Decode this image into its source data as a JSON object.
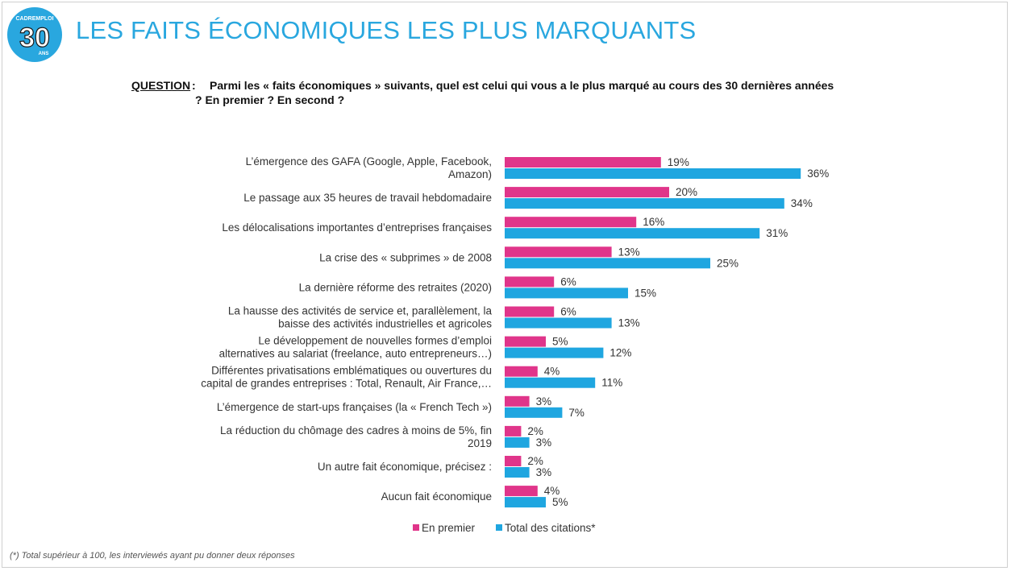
{
  "header": {
    "title": "LES FAITS ÉCONOMIQUES LES PLUS MARQUANTS",
    "logo_text": "CADREMPLOI",
    "logo_number": "30",
    "logo_sub": "ANS"
  },
  "question": {
    "label": "QUESTION",
    "colon": ":",
    "text": "Parmi les « faits économiques » suivants, quel est celui qui vous a le plus marqué au cours des 30 dernières années ? En premier ? En second ?"
  },
  "footnote": "(*) Total supérieur à 100, les interviewés ayant pu donner deux réponses",
  "colors": {
    "accent": "#29a7df",
    "premier": "#e0358a",
    "total": "#1fa6e0"
  },
  "chart_data": {
    "type": "bar",
    "orientation": "horizontal",
    "grid": false,
    "legend_position": "bottom",
    "xlim": [
      0,
      40
    ],
    "categories": [
      [
        "L’émergence des GAFA (Google, Apple, Facebook,",
        "Amazon)"
      ],
      [
        "Le passage aux 35 heures de travail hebdomadaire"
      ],
      [
        "Les délocalisations importantes d’entreprises françaises"
      ],
      [
        "La crise des « subprimes » de 2008"
      ],
      [
        "La dernière réforme des retraites (2020)"
      ],
      [
        "La hausse des activités de service et, parallèlement, la",
        "baisse des activités industrielles et agricoles"
      ],
      [
        "Le développement de nouvelles formes d’emploi",
        "alternatives au salariat (freelance, auto entrepreneurs…)"
      ],
      [
        "Différentes privatisations emblématiques ou ouvertures du",
        "capital de grandes entreprises : Total, Renault, Air France,…"
      ],
      [
        "L’émergence de start-ups françaises (la « French Tech »)"
      ],
      [
        "La réduction du chômage des cadres à moins de 5%, fin",
        "2019"
      ],
      [
        "Un autre fait économique, précisez :"
      ],
      [
        "Aucun fait économique"
      ]
    ],
    "series": [
      {
        "name": "En premier",
        "color": "#e0358a",
        "values": [
          19,
          20,
          16,
          13,
          6,
          6,
          5,
          4,
          3,
          2,
          2,
          4
        ],
        "labels": [
          "19%",
          "20%",
          "16%",
          "13%",
          "6%",
          "6%",
          "5%",
          "4%",
          "3%",
          "2%",
          "2%",
          "4%"
        ]
      },
      {
        "name": "Total des citations*",
        "color": "#1fa6e0",
        "values": [
          36,
          34,
          31,
          25,
          15,
          13,
          12,
          11,
          7,
          3,
          3,
          5
        ],
        "labels": [
          "36%",
          "34%",
          "31%",
          "25%",
          "15%",
          "13%",
          "12%",
          "11%",
          "7%",
          "3%",
          "3%",
          "5%"
        ]
      }
    ]
  }
}
